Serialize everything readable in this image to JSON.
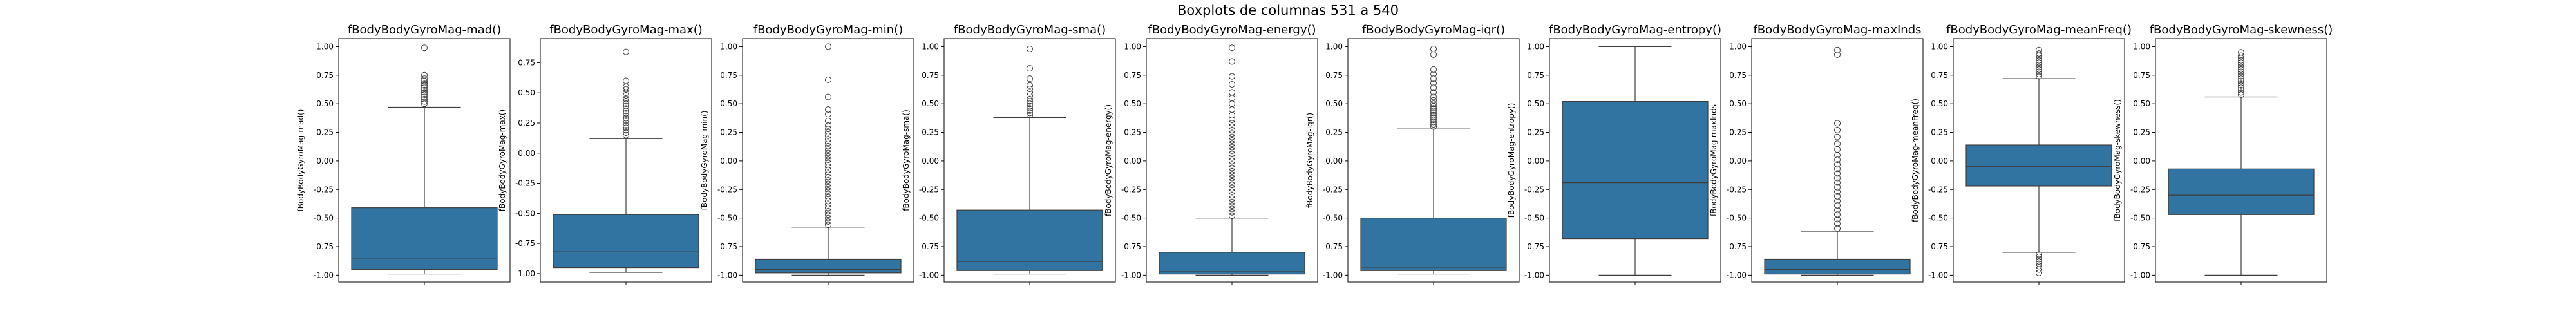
{
  "title": "Boxplots de columnas 531 a 540",
  "box_color": "#3274a1",
  "chart_data": [
    {
      "type": "boxplot",
      "title": "fBodyBodyGyroMag-mad()",
      "ylabel": "fBodyBodyGyroMag-mad()",
      "ylim": [
        -1.06,
        1.07
      ],
      "yticks": [
        "1.00",
        "0.75",
        "0.50",
        "0.25",
        "0.00",
        "-0.25",
        "-0.50",
        "-0.75",
        "-1.00"
      ],
      "tick_values": [
        1.0,
        0.75,
        0.5,
        0.25,
        0.0,
        -0.25,
        -0.5,
        -0.75,
        -1.0
      ],
      "box": {
        "whislo": -0.99,
        "q1": -0.95,
        "median": -0.85,
        "q3": -0.41,
        "whishi": 0.47
      },
      "outliers": [
        0.5,
        0.52,
        0.54,
        0.56,
        0.58,
        0.6,
        0.62,
        0.64,
        0.66,
        0.68,
        0.7,
        0.72,
        0.75,
        0.99
      ]
    },
    {
      "type": "boxplot",
      "title": "fBodyBodyGyroMag-max()",
      "ylabel": "fBodyBodyGyroMag-max()",
      "ylim": [
        -1.07,
        0.95
      ],
      "yticks": [
        "0.75",
        "0.50",
        "0.25",
        "0.00",
        "-0.25",
        "-0.50",
        "-0.75",
        "-1.00"
      ],
      "tick_values": [
        0.75,
        0.5,
        0.25,
        0.0,
        -0.25,
        -0.5,
        -0.75,
        -1.0
      ],
      "box": {
        "whislo": -0.99,
        "q1": -0.95,
        "median": -0.82,
        "q3": -0.51,
        "whishi": 0.12
      },
      "outliers": [
        0.15,
        0.17,
        0.19,
        0.21,
        0.23,
        0.25,
        0.27,
        0.29,
        0.31,
        0.33,
        0.35,
        0.37,
        0.39,
        0.41,
        0.43,
        0.45,
        0.48,
        0.5,
        0.53,
        0.55,
        0.6,
        0.84
      ]
    },
    {
      "type": "boxplot",
      "title": "fBodyBodyGyroMag-min()",
      "ylabel": "fBodyBodyGyroMag-min()",
      "ylim": [
        -1.06,
        1.07
      ],
      "yticks": [
        "1.00",
        "0.75",
        "0.50",
        "0.25",
        "0.00",
        "-0.25",
        "-0.50",
        "-0.75",
        "-1.00"
      ],
      "tick_values": [
        1.0,
        0.75,
        0.5,
        0.25,
        0.0,
        -0.25,
        -0.5,
        -0.75,
        -1.0
      ],
      "box": {
        "whislo": -1.0,
        "q1": -0.98,
        "median": -0.95,
        "q3": -0.86,
        "whishi": -0.58
      },
      "outliers": [
        -0.56,
        -0.53,
        -0.5,
        -0.47,
        -0.44,
        -0.41,
        -0.38,
        -0.35,
        -0.32,
        -0.29,
        -0.26,
        -0.23,
        -0.2,
        -0.17,
        -0.14,
        -0.11,
        -0.08,
        -0.05,
        -0.02,
        0.01,
        0.04,
        0.07,
        0.1,
        0.13,
        0.16,
        0.19,
        0.22,
        0.25,
        0.28,
        0.31,
        0.35,
        0.41,
        0.45,
        0.56,
        0.71,
        1.0
      ]
    },
    {
      "type": "boxplot",
      "title": "fBodyBodyGyroMag-sma()",
      "ylabel": "fBodyBodyGyroMag-sma()",
      "ylim": [
        -1.06,
        1.07
      ],
      "yticks": [
        "1.00",
        "0.75",
        "0.50",
        "0.25",
        "0.00",
        "-0.25",
        "-0.50",
        "-0.75",
        "-1.00"
      ],
      "tick_values": [
        1.0,
        0.75,
        0.5,
        0.25,
        0.0,
        -0.25,
        -0.5,
        -0.75,
        -1.0
      ],
      "box": {
        "whislo": -0.99,
        "q1": -0.96,
        "median": -0.88,
        "q3": -0.43,
        "whishi": 0.38
      },
      "outliers": [
        0.4,
        0.42,
        0.44,
        0.46,
        0.48,
        0.5,
        0.52,
        0.54,
        0.57,
        0.6,
        0.63,
        0.66,
        0.72,
        0.81,
        0.98
      ]
    },
    {
      "type": "boxplot",
      "title": "fBodyBodyGyroMag-energy()",
      "ylabel": "fBodyBodyGyroMag-energy()",
      "ylim": [
        -1.06,
        1.07
      ],
      "yticks": [
        "1.00",
        "0.75",
        "0.50",
        "0.25",
        "0.00",
        "-0.25",
        "-0.50",
        "-0.75",
        "-1.00"
      ],
      "tick_values": [
        1.0,
        0.75,
        0.5,
        0.25,
        0.0,
        -0.25,
        -0.5,
        -0.75,
        -1.0
      ],
      "box": {
        "whislo": -1.0,
        "q1": -0.99,
        "median": -0.97,
        "q3": -0.8,
        "whishi": -0.5
      },
      "outliers": [
        -0.48,
        -0.45,
        -0.42,
        -0.39,
        -0.36,
        -0.33,
        -0.3,
        -0.27,
        -0.24,
        -0.21,
        -0.18,
        -0.15,
        -0.12,
        -0.09,
        -0.06,
        -0.03,
        0.0,
        0.03,
        0.06,
        0.09,
        0.12,
        0.15,
        0.18,
        0.21,
        0.24,
        0.27,
        0.3,
        0.33,
        0.36,
        0.4,
        0.45,
        0.5,
        0.55,
        0.6,
        0.67,
        0.74,
        0.87,
        0.99
      ]
    },
    {
      "type": "boxplot",
      "title": "fBodyBodyGyroMag-iqr()",
      "ylabel": "fBodyBodyGyroMag-iqr()",
      "ylim": [
        -1.06,
        1.07
      ],
      "yticks": [
        "1.00",
        "0.75",
        "0.50",
        "0.25",
        "0.00",
        "-0.25",
        "-0.50",
        "-0.75",
        "-1.00"
      ],
      "tick_values": [
        1.0,
        0.75,
        0.5,
        0.25,
        0.0,
        -0.25,
        -0.5,
        -0.75,
        -1.0
      ],
      "box": {
        "whislo": -0.99,
        "q1": -0.96,
        "median": -0.93,
        "q3": -0.5,
        "whishi": 0.28
      },
      "outliers": [
        0.3,
        0.32,
        0.34,
        0.36,
        0.38,
        0.4,
        0.42,
        0.44,
        0.46,
        0.48,
        0.5,
        0.53,
        0.56,
        0.6,
        0.64,
        0.68,
        0.72,
        0.76,
        0.8,
        0.93,
        0.98
      ]
    },
    {
      "type": "boxplot",
      "title": "fBodyBodyGyroMag-entropy()",
      "ylabel": "fBodyBodyGyroMag-entropy()",
      "ylim": [
        -1.06,
        1.07
      ],
      "yticks": [
        "1.00",
        "0.75",
        "0.50",
        "0.25",
        "0.00",
        "-0.25",
        "-0.50",
        "-0.75",
        "-1.00"
      ],
      "tick_values": [
        1.0,
        0.75,
        0.5,
        0.25,
        0.0,
        -0.25,
        -0.5,
        -0.75,
        -1.0
      ],
      "box": {
        "whislo": -1.0,
        "q1": -0.68,
        "median": -0.19,
        "q3": 0.52,
        "whishi": 1.0
      },
      "outliers": []
    },
    {
      "type": "boxplot",
      "title": "fBodyBodyGyroMag-maxInds",
      "ylabel": "fBodyBodyGyroMag-maxInds",
      "ylim": [
        -1.06,
        1.07
      ],
      "yticks": [
        "1.00",
        "0.75",
        "0.50",
        "0.25",
        "0.00",
        "-0.25",
        "-0.50",
        "-0.75",
        "-1.00"
      ],
      "tick_values": [
        1.0,
        0.75,
        0.5,
        0.25,
        0.0,
        -0.25,
        -0.5,
        -0.75,
        -1.0
      ],
      "box": {
        "whislo": -1.0,
        "q1": -0.99,
        "median": -0.95,
        "q3": -0.86,
        "whishi": -0.62
      },
      "outliers": [
        -0.59,
        -0.55,
        -0.51,
        -0.47,
        -0.43,
        -0.39,
        -0.35,
        -0.31,
        -0.27,
        -0.23,
        -0.19,
        -0.15,
        -0.11,
        -0.07,
        -0.03,
        0.01,
        0.05,
        0.1,
        0.15,
        0.21,
        0.27,
        0.33,
        0.93,
        0.97
      ]
    },
    {
      "type": "boxplot",
      "title": "fBodyBodyGyroMag-meanFreq()",
      "ylabel": "fBodyBodyGyroMag-meanFreq()",
      "ylim": [
        -1.06,
        1.07
      ],
      "yticks": [
        "1.00",
        "0.75",
        "0.50",
        "0.25",
        "0.00",
        "-0.25",
        "-0.50",
        "-0.75",
        "-1.00"
      ],
      "tick_values": [
        1.0,
        0.75,
        0.5,
        0.25,
        0.0,
        -0.25,
        -0.5,
        -0.75,
        -1.0
      ],
      "box": {
        "whislo": -0.8,
        "q1": -0.22,
        "median": -0.05,
        "q3": 0.14,
        "whishi": 0.72
      },
      "outliers": [
        -0.82,
        -0.84,
        -0.86,
        -0.88,
        -0.9,
        -0.92,
        -0.95,
        -0.98,
        0.74,
        0.76,
        0.78,
        0.8,
        0.82,
        0.84,
        0.86,
        0.88,
        0.9,
        0.92,
        0.94,
        0.97
      ]
    },
    {
      "type": "boxplot",
      "title": "fBodyBodyGyroMag-skewness()",
      "ylabel": "fBodyBodyGyroMag-skewness()",
      "ylim": [
        -1.06,
        1.07
      ],
      "yticks": [
        "1.00",
        "0.75",
        "0.50",
        "0.25",
        "0.00",
        "-0.25",
        "-0.50",
        "-0.75",
        "-1.00"
      ],
      "tick_values": [
        1.0,
        0.75,
        0.5,
        0.25,
        0.0,
        -0.25,
        -0.5,
        -0.75,
        -1.0
      ],
      "box": {
        "whislo": -1.0,
        "q1": -0.47,
        "median": -0.3,
        "q3": -0.07,
        "whishi": 0.56
      },
      "outliers": [
        0.58,
        0.6,
        0.62,
        0.64,
        0.66,
        0.68,
        0.7,
        0.72,
        0.74,
        0.76,
        0.78,
        0.8,
        0.82,
        0.84,
        0.86,
        0.88,
        0.9,
        0.92,
        0.95
      ]
    }
  ]
}
